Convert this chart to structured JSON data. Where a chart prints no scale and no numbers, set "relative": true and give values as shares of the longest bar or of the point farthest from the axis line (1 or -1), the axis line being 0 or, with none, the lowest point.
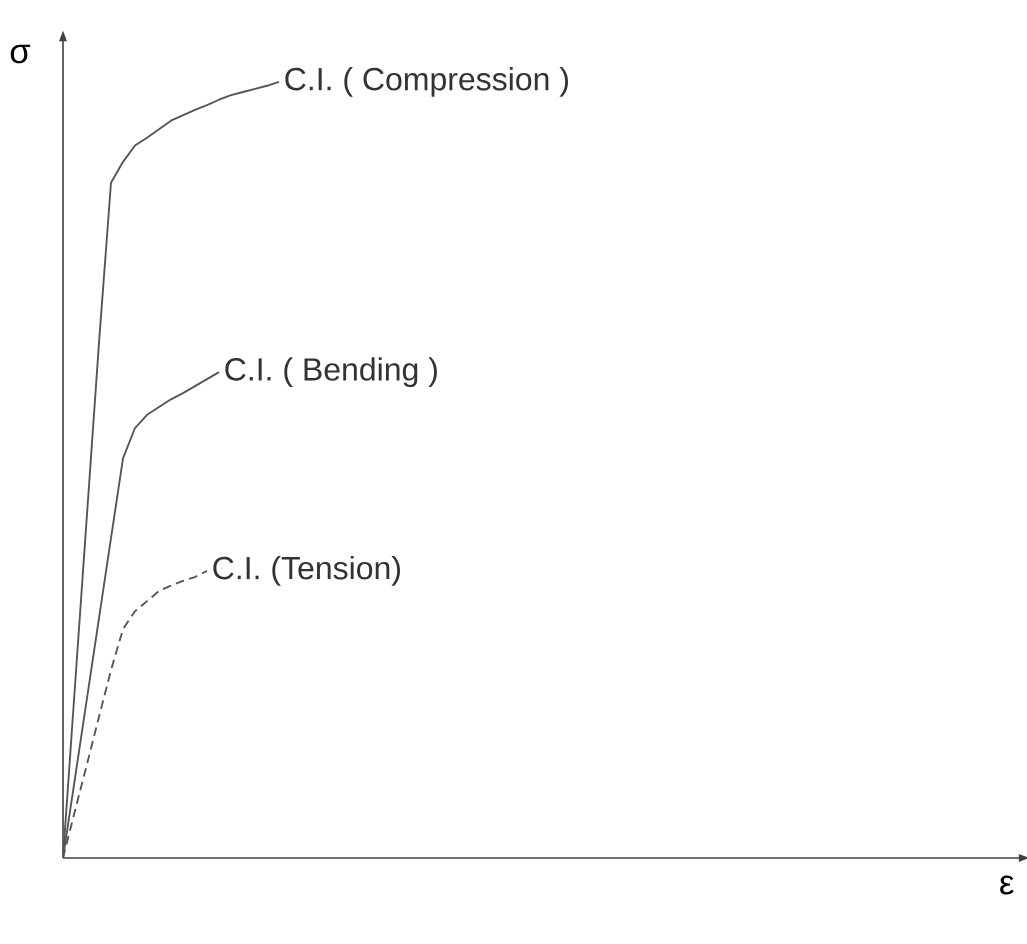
{
  "chart_data": {
    "type": "line",
    "relative": true,
    "annotations": [
      "ε"
    ],
    "ylabel": "σ",
    "categories": [
      null,
      null,
      null,
      null,
      null,
      null,
      null,
      null,
      null,
      null,
      null,
      null,
      null,
      null,
      null,
      null,
      null,
      null,
      null
    ],
    "series": [
      {
        "name": "C.I. ( Compression )",
        "color": "#555555",
        "line_style": "solid",
        "values": [
          0,
          0.222,
          0.443,
          0.664,
          0.87,
          0.897,
          0.918,
          0.928,
          0.939,
          0.95,
          0.957,
          0.964,
          0.97,
          0.977,
          0.983,
          0.987,
          0.991,
          0.995,
          1
        ]
      },
      {
        "name": "C.I. ( Bending )",
        "color": "#555555",
        "line_style": "solid",
        "values": [
          0,
          0.103,
          0.206,
          0.309,
          0.412,
          0.515,
          0.554,
          0.571,
          0.581,
          0.591,
          0.599,
          0.608,
          0.617,
          0.626,
          null,
          null,
          null,
          null,
          null
        ]
      },
      {
        "name": "C.I. (Tension)",
        "color": "#555555",
        "line_style": "dashed",
        "values": [
          0,
          0.061,
          0.121,
          0.182,
          0.242,
          0.295,
          0.318,
          0.331,
          0.344,
          0.351,
          0.357,
          0.362,
          0.37,
          null,
          null,
          null,
          null,
          null,
          null
        ]
      }
    ]
  }
}
